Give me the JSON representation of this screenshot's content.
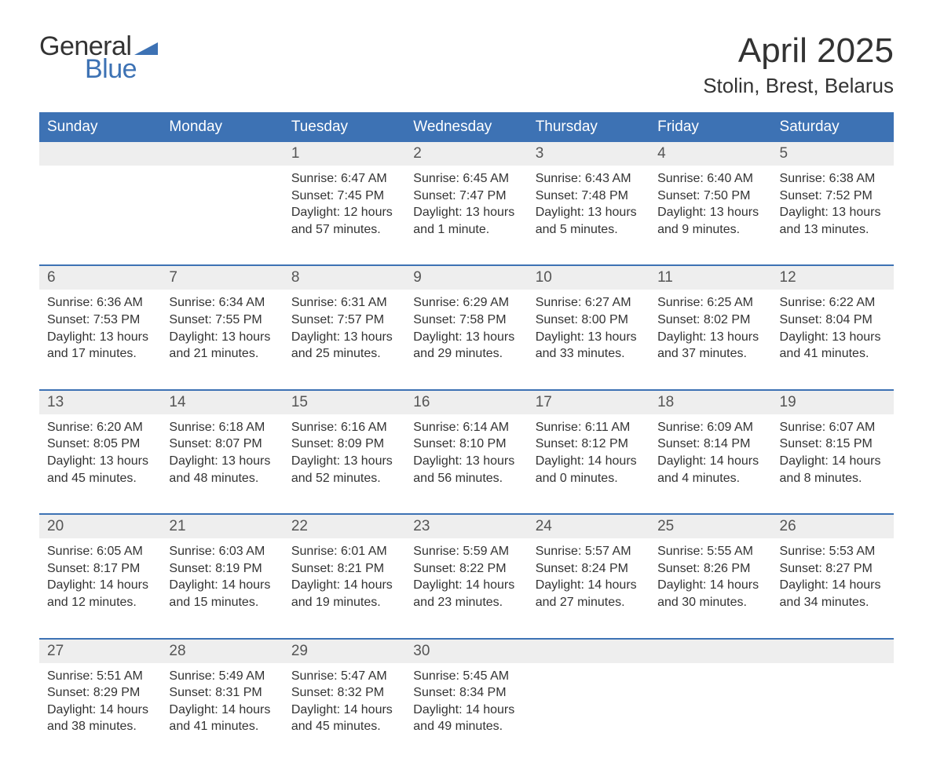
{
  "logo": {
    "word1": "General",
    "word2": "Blue",
    "icon_color": "#3d72b4",
    "text_color": "#333333"
  },
  "title": {
    "month": "April 2025",
    "location": "Stolin, Brest, Belarus"
  },
  "colors": {
    "header_bg": "#3d72b4",
    "header_text": "#ffffff",
    "daynum_bg": "#eeeeee",
    "row_border": "#3d72b4",
    "body_text": "#333333",
    "daynum_text": "#555555",
    "page_bg": "#ffffff"
  },
  "typography": {
    "month_fontsize": 44,
    "location_fontsize": 26,
    "header_fontsize": 19,
    "daynum_fontsize": 19,
    "content_fontsize": 16,
    "logo_fontsize": 34
  },
  "layout": {
    "columns": 7,
    "col_width_pct": 14.28
  },
  "weekdays": [
    "Sunday",
    "Monday",
    "Tuesday",
    "Wednesday",
    "Thursday",
    "Friday",
    "Saturday"
  ],
  "rows": [
    {
      "first": true,
      "days": [
        {
          "num": "",
          "sunrise": "",
          "sunset": "",
          "daylight": ""
        },
        {
          "num": "",
          "sunrise": "",
          "sunset": "",
          "daylight": ""
        },
        {
          "num": "1",
          "sunrise": "Sunrise: 6:47 AM",
          "sunset": "Sunset: 7:45 PM",
          "daylight": "Daylight: 12 hours and 57 minutes."
        },
        {
          "num": "2",
          "sunrise": "Sunrise: 6:45 AM",
          "sunset": "Sunset: 7:47 PM",
          "daylight": "Daylight: 13 hours and 1 minute."
        },
        {
          "num": "3",
          "sunrise": "Sunrise: 6:43 AM",
          "sunset": "Sunset: 7:48 PM",
          "daylight": "Daylight: 13 hours and 5 minutes."
        },
        {
          "num": "4",
          "sunrise": "Sunrise: 6:40 AM",
          "sunset": "Sunset: 7:50 PM",
          "daylight": "Daylight: 13 hours and 9 minutes."
        },
        {
          "num": "5",
          "sunrise": "Sunrise: 6:38 AM",
          "sunset": "Sunset: 7:52 PM",
          "daylight": "Daylight: 13 hours and 13 minutes."
        }
      ]
    },
    {
      "days": [
        {
          "num": "6",
          "sunrise": "Sunrise: 6:36 AM",
          "sunset": "Sunset: 7:53 PM",
          "daylight": "Daylight: 13 hours and 17 minutes."
        },
        {
          "num": "7",
          "sunrise": "Sunrise: 6:34 AM",
          "sunset": "Sunset: 7:55 PM",
          "daylight": "Daylight: 13 hours and 21 minutes."
        },
        {
          "num": "8",
          "sunrise": "Sunrise: 6:31 AM",
          "sunset": "Sunset: 7:57 PM",
          "daylight": "Daylight: 13 hours and 25 minutes."
        },
        {
          "num": "9",
          "sunrise": "Sunrise: 6:29 AM",
          "sunset": "Sunset: 7:58 PM",
          "daylight": "Daylight: 13 hours and 29 minutes."
        },
        {
          "num": "10",
          "sunrise": "Sunrise: 6:27 AM",
          "sunset": "Sunset: 8:00 PM",
          "daylight": "Daylight: 13 hours and 33 minutes."
        },
        {
          "num": "11",
          "sunrise": "Sunrise: 6:25 AM",
          "sunset": "Sunset: 8:02 PM",
          "daylight": "Daylight: 13 hours and 37 minutes."
        },
        {
          "num": "12",
          "sunrise": "Sunrise: 6:22 AM",
          "sunset": "Sunset: 8:04 PM",
          "daylight": "Daylight: 13 hours and 41 minutes."
        }
      ]
    },
    {
      "days": [
        {
          "num": "13",
          "sunrise": "Sunrise: 6:20 AM",
          "sunset": "Sunset: 8:05 PM",
          "daylight": "Daylight: 13 hours and 45 minutes."
        },
        {
          "num": "14",
          "sunrise": "Sunrise: 6:18 AM",
          "sunset": "Sunset: 8:07 PM",
          "daylight": "Daylight: 13 hours and 48 minutes."
        },
        {
          "num": "15",
          "sunrise": "Sunrise: 6:16 AM",
          "sunset": "Sunset: 8:09 PM",
          "daylight": "Daylight: 13 hours and 52 minutes."
        },
        {
          "num": "16",
          "sunrise": "Sunrise: 6:14 AM",
          "sunset": "Sunset: 8:10 PM",
          "daylight": "Daylight: 13 hours and 56 minutes."
        },
        {
          "num": "17",
          "sunrise": "Sunrise: 6:11 AM",
          "sunset": "Sunset: 8:12 PM",
          "daylight": "Daylight: 14 hours and 0 minutes."
        },
        {
          "num": "18",
          "sunrise": "Sunrise: 6:09 AM",
          "sunset": "Sunset: 8:14 PM",
          "daylight": "Daylight: 14 hours and 4 minutes."
        },
        {
          "num": "19",
          "sunrise": "Sunrise: 6:07 AM",
          "sunset": "Sunset: 8:15 PM",
          "daylight": "Daylight: 14 hours and 8 minutes."
        }
      ]
    },
    {
      "days": [
        {
          "num": "20",
          "sunrise": "Sunrise: 6:05 AM",
          "sunset": "Sunset: 8:17 PM",
          "daylight": "Daylight: 14 hours and 12 minutes."
        },
        {
          "num": "21",
          "sunrise": "Sunrise: 6:03 AM",
          "sunset": "Sunset: 8:19 PM",
          "daylight": "Daylight: 14 hours and 15 minutes."
        },
        {
          "num": "22",
          "sunrise": "Sunrise: 6:01 AM",
          "sunset": "Sunset: 8:21 PM",
          "daylight": "Daylight: 14 hours and 19 minutes."
        },
        {
          "num": "23",
          "sunrise": "Sunrise: 5:59 AM",
          "sunset": "Sunset: 8:22 PM",
          "daylight": "Daylight: 14 hours and 23 minutes."
        },
        {
          "num": "24",
          "sunrise": "Sunrise: 5:57 AM",
          "sunset": "Sunset: 8:24 PM",
          "daylight": "Daylight: 14 hours and 27 minutes."
        },
        {
          "num": "25",
          "sunrise": "Sunrise: 5:55 AM",
          "sunset": "Sunset: 8:26 PM",
          "daylight": "Daylight: 14 hours and 30 minutes."
        },
        {
          "num": "26",
          "sunrise": "Sunrise: 5:53 AM",
          "sunset": "Sunset: 8:27 PM",
          "daylight": "Daylight: 14 hours and 34 minutes."
        }
      ]
    },
    {
      "days": [
        {
          "num": "27",
          "sunrise": "Sunrise: 5:51 AM",
          "sunset": "Sunset: 8:29 PM",
          "daylight": "Daylight: 14 hours and 38 minutes."
        },
        {
          "num": "28",
          "sunrise": "Sunrise: 5:49 AM",
          "sunset": "Sunset: 8:31 PM",
          "daylight": "Daylight: 14 hours and 41 minutes."
        },
        {
          "num": "29",
          "sunrise": "Sunrise: 5:47 AM",
          "sunset": "Sunset: 8:32 PM",
          "daylight": "Daylight: 14 hours and 45 minutes."
        },
        {
          "num": "30",
          "sunrise": "Sunrise: 5:45 AM",
          "sunset": "Sunset: 8:34 PM",
          "daylight": "Daylight: 14 hours and 49 minutes."
        },
        {
          "num": "",
          "sunrise": "",
          "sunset": "",
          "daylight": ""
        },
        {
          "num": "",
          "sunrise": "",
          "sunset": "",
          "daylight": ""
        },
        {
          "num": "",
          "sunrise": "",
          "sunset": "",
          "daylight": ""
        }
      ]
    }
  ]
}
